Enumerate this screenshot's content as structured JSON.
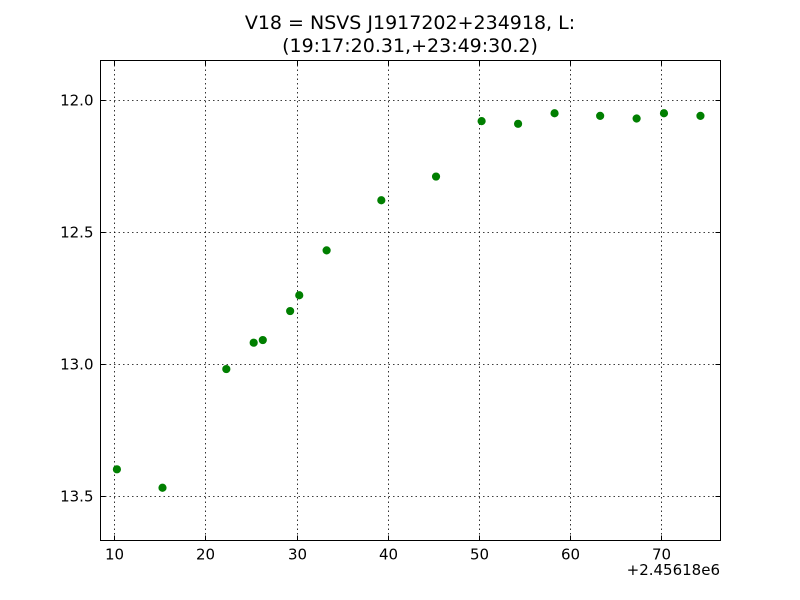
{
  "chart_data": {
    "type": "scatter",
    "title_line1": "V18 = NSVS J1917202+234918, L:",
    "title_line2": "(19:17:20.31,+23:49:30.2)",
    "xlabel": "",
    "ylabel": "",
    "x_offset_label": "+2.45618e6",
    "xlim": [
      8.5,
      76.5
    ],
    "ylim": [
      13.67,
      11.85
    ],
    "y_inverted": true,
    "grid": true,
    "x_ticks": [
      10,
      20,
      30,
      40,
      50,
      60,
      70
    ],
    "x_tick_labels": [
      "10",
      "20",
      "30",
      "40",
      "50",
      "60",
      "70"
    ],
    "y_ticks": [
      12.0,
      12.5,
      13.0,
      13.5
    ],
    "y_tick_labels": [
      "12.0",
      "12.5",
      "13.0",
      "13.5"
    ],
    "series": [
      {
        "color": "#007f00",
        "marker": "circle",
        "x": [
          10.3,
          15.3,
          22.3,
          25.3,
          26.3,
          29.3,
          30.3,
          33.3,
          39.3,
          45.3,
          50.3,
          54.3,
          58.3,
          63.3,
          67.3,
          70.3,
          74.3
        ],
        "y": [
          13.4,
          13.47,
          13.02,
          12.92,
          12.91,
          12.8,
          12.74,
          12.57,
          12.38,
          12.29,
          12.08,
          12.09,
          12.05,
          12.06,
          12.07,
          12.05,
          12.06
        ]
      }
    ]
  }
}
